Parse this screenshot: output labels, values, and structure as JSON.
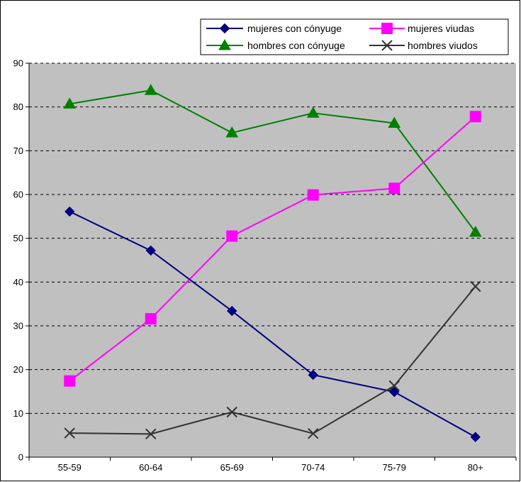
{
  "chart_data": {
    "type": "line",
    "categories": [
      "55-59",
      "60-64",
      "65-69",
      "70-74",
      "75-79",
      "80+"
    ],
    "ylim": [
      0,
      90
    ],
    "yticks": [
      "0",
      "10",
      "20",
      "30",
      "40",
      "50",
      "60",
      "70",
      "80",
      "90"
    ],
    "grid": "horizontal dashed",
    "legend_position": "top-right",
    "plot_background": "#c0c0c0",
    "series": [
      {
        "name": "mujeres con cónyuge",
        "color": "#000080",
        "marker": "diamond",
        "values": [
          56.1,
          47.2,
          33.4,
          18.8,
          14.9,
          4.6
        ]
      },
      {
        "name": "mujeres viudas",
        "color": "#ff00ff",
        "marker": "square",
        "values": [
          17.4,
          31.6,
          50.5,
          59.9,
          61.4,
          77.8
        ]
      },
      {
        "name": "hombres con cónyuge",
        "color": "#008000",
        "marker": "triangle",
        "values": [
          80.7,
          83.8,
          74.1,
          78.6,
          76.3,
          51.4
        ]
      },
      {
        "name": "hombres viudos",
        "color": "#333333",
        "marker": "x",
        "values": [
          5.5,
          5.3,
          10.3,
          5.4,
          16.3,
          39.0
        ]
      }
    ]
  }
}
